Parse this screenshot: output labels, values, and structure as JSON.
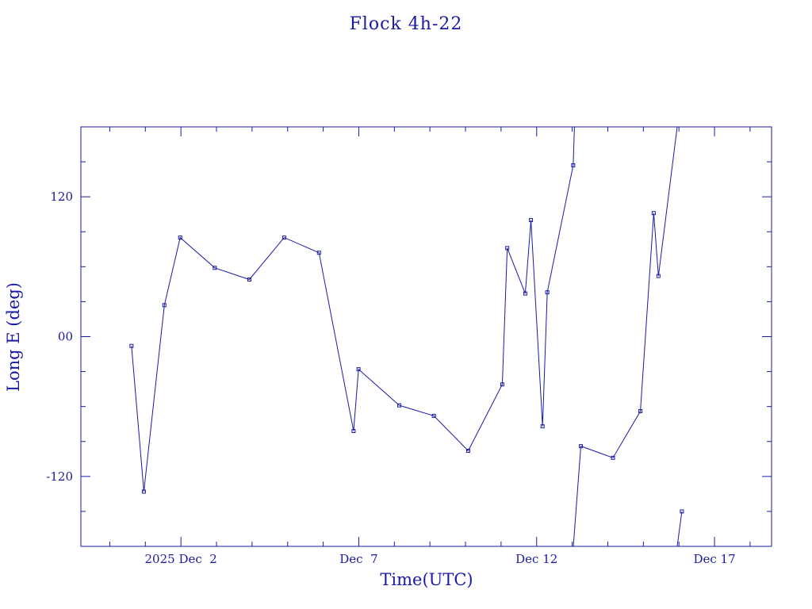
{
  "colors": {
    "ink": "#1a1aa6",
    "background": "#ffffff"
  },
  "chart_data": {
    "type": "line",
    "title": "Flock 4h-22",
    "xlabel": "Time(UTC)",
    "ylabel": "Long E (deg)",
    "xlim": [
      "2025-11-29T04:30",
      "2025-12-18T14:30"
    ],
    "ylim": [
      -180,
      180
    ],
    "x_ticks": [
      {
        "label": "2025 Dec  2",
        "x": "2025-12-02T00:00"
      },
      {
        "label": "Dec  7",
        "x": "2025-12-07T00:00"
      },
      {
        "label": "Dec 12",
        "x": "2025-12-12T00:00"
      },
      {
        "label": "Dec 17",
        "x": "2025-12-17T00:00"
      }
    ],
    "y_ticks": [
      {
        "label": "120",
        "y": 120
      },
      {
        "label": "00",
        "y": 0
      },
      {
        "label": "-120",
        "y": -120
      }
    ],
    "segments": [
      {
        "points": [
          [
            "2025-11-30T14:40",
            -8
          ],
          [
            "2025-11-30T23:00",
            -133
          ],
          [
            "2025-12-01T12:50",
            27
          ],
          [
            "2025-12-01T23:30",
            85
          ],
          [
            "2025-12-02T22:50",
            59
          ],
          [
            "2025-12-03T22:10",
            49
          ],
          [
            "2025-12-04T21:40",
            85
          ],
          [
            "2025-12-05T21:10",
            72
          ],
          [
            "2025-12-06T20:30",
            -81
          ],
          [
            "2025-12-06T23:50",
            -28
          ],
          [
            "2025-12-08T03:20",
            -59
          ],
          [
            "2025-12-09T02:40",
            -68
          ],
          [
            "2025-12-10T01:50",
            -98
          ],
          [
            "2025-12-11T00:50",
            -41
          ],
          [
            "2025-12-11T04:10",
            76
          ],
          [
            "2025-12-11T16:20",
            37
          ],
          [
            "2025-12-11T20:10",
            100
          ],
          [
            "2025-12-12T04:00",
            -77
          ],
          [
            "2025-12-12T07:10",
            38
          ],
          [
            "2025-12-13T00:40",
            147
          ],
          [
            "2025-12-13T01:30",
            180
          ]
        ]
      },
      {
        "points": [
          [
            "2025-12-13T00:45",
            -180
          ],
          [
            "2025-12-13T05:50",
            -94
          ],
          [
            "2025-12-14T03:30",
            -104
          ],
          [
            "2025-12-14T22:00",
            -64
          ],
          [
            "2025-12-15T07:00",
            106
          ],
          [
            "2025-12-15T10:10",
            52
          ],
          [
            "2025-12-15T22:50",
            180
          ]
        ]
      },
      {
        "points": [
          [
            "2025-12-15T22:50",
            -180
          ],
          [
            "2025-12-16T02:00",
            -150
          ]
        ]
      }
    ]
  }
}
